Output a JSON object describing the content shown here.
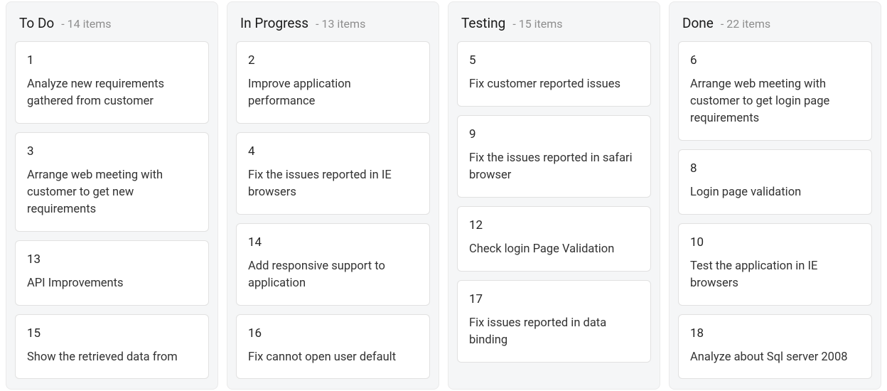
{
  "board": {
    "colors": {
      "column_bg": "#f5f6f7",
      "card_bg": "#ffffff",
      "card_border": "#e1e1e1",
      "title_color": "#1a1a1a",
      "count_color": "#8e8e8e",
      "text_color": "#333333"
    },
    "columns": [
      {
        "title": "To Do",
        "count_label": "- 14 items",
        "cards": [
          {
            "id": "1",
            "desc": "Analyze new requirements gathered from customer"
          },
          {
            "id": "3",
            "desc": "Arrange web meeting with customer to get new requirements"
          },
          {
            "id": "13",
            "desc": "API Improvements"
          },
          {
            "id": "15",
            "desc": "Show the retrieved data from"
          }
        ]
      },
      {
        "title": "In Progress",
        "count_label": "- 13 items",
        "cards": [
          {
            "id": "2",
            "desc": "Improve application performance"
          },
          {
            "id": "4",
            "desc": "Fix the issues reported in IE browsers"
          },
          {
            "id": "14",
            "desc": "Add responsive support to application"
          },
          {
            "id": "16",
            "desc": "Fix cannot open user default"
          }
        ]
      },
      {
        "title": "Testing",
        "count_label": "- 15 items",
        "cards": [
          {
            "id": "5",
            "desc": "Fix customer reported issues"
          },
          {
            "id": "9",
            "desc": "Fix the issues reported in safari browser"
          },
          {
            "id": "12",
            "desc": "Check login Page Validation"
          },
          {
            "id": "17",
            "desc": "Fix issues reported in data binding"
          }
        ]
      },
      {
        "title": "Done",
        "count_label": "- 22 items",
        "cards": [
          {
            "id": "6",
            "desc": "Arrange web meeting with customer to get login page requirements"
          },
          {
            "id": "8",
            "desc": "Login page validation"
          },
          {
            "id": "10",
            "desc": "Test the application in IE browsers"
          },
          {
            "id": "18",
            "desc": "Analyze about Sql server 2008"
          }
        ]
      }
    ]
  }
}
